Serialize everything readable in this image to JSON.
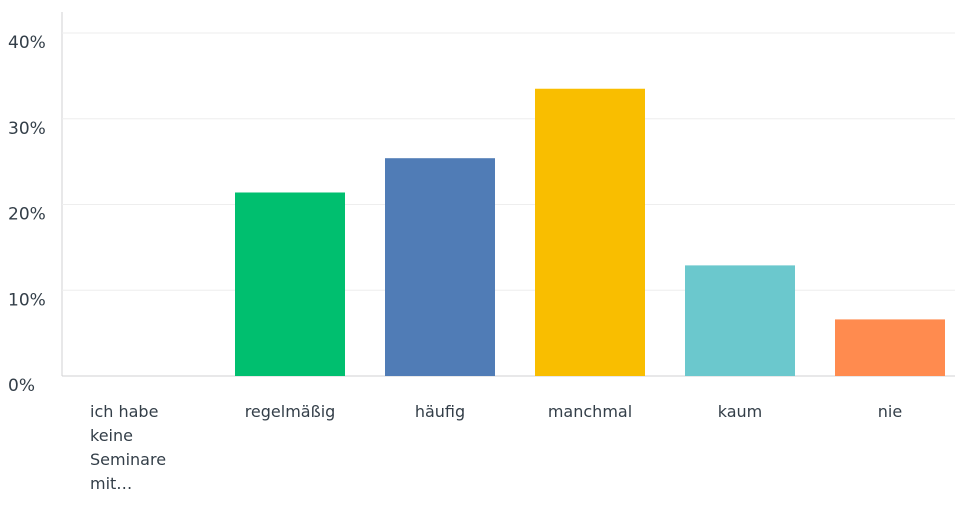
{
  "chart_data": {
    "type": "bar",
    "categories": [
      "ich habe keine Seminare mit…",
      "regelmäßig",
      "häufig",
      "manchmal",
      "kaum",
      "nie"
    ],
    "values": [
      0,
      21.4,
      25.4,
      33.5,
      12.9,
      6.6
    ],
    "colors": [
      "#00bf6f",
      "#00bf6f",
      "#507cb6",
      "#f9be00",
      "#6bc8cd",
      "#ff8b4f"
    ],
    "ylim": [
      0,
      40
    ],
    "yticks": [
      {
        "value": 0,
        "label": "0%"
      },
      {
        "value": 10,
        "label": "10%"
      },
      {
        "value": 20,
        "label": "20%"
      },
      {
        "value": 30,
        "label": "30%"
      },
      {
        "value": 40,
        "label": "40%"
      }
    ],
    "grid": true
  }
}
